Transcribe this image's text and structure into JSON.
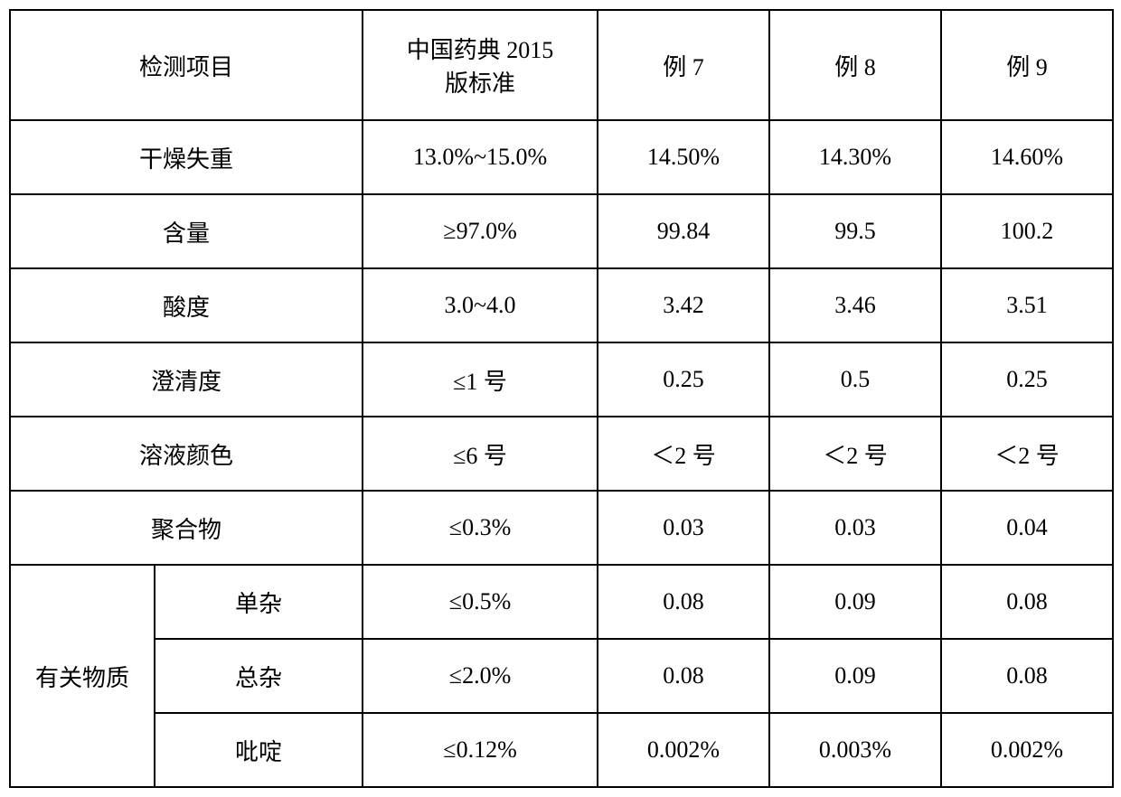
{
  "headers": {
    "item_label": "检测项目",
    "standard": "中国药典 2015",
    "standard_line2": "版标准",
    "ex7": "例 7",
    "ex8": "例 8",
    "ex9": "例 9"
  },
  "rows": [
    {
      "label": "干燥失重",
      "standard": "13.0%~15.0%",
      "ex7": "14.50%",
      "ex8": "14.30%",
      "ex9": "14.60%"
    },
    {
      "label": "含量",
      "standard": "≥97.0%",
      "ex7": "99.84",
      "ex8": "99.5",
      "ex9": "100.2"
    },
    {
      "label": "酸度",
      "standard": "3.0~4.0",
      "ex7": "3.42",
      "ex8": "3.46",
      "ex9": "3.51"
    },
    {
      "label": "澄清度",
      "standard": "≤1 号",
      "ex7": "0.25",
      "ex8": "0.5",
      "ex9": "0.25"
    },
    {
      "label": "溶液颜色",
      "standard": "≤6 号",
      "ex7": "＜2 号",
      "ex8": "＜2 号",
      "ex9": "＜2 号"
    },
    {
      "label": "聚合物",
      "standard": "≤0.3%",
      "ex7": "0.03",
      "ex8": "0.03",
      "ex9": "0.04"
    }
  ],
  "group": {
    "label": "有关物质",
    "subrows": [
      {
        "label": "单杂",
        "standard": "≤0.5%",
        "ex7": "0.08",
        "ex8": "0.09",
        "ex9": "0.08"
      },
      {
        "label": "总杂",
        "standard": "≤2.0%",
        "ex7": "0.08",
        "ex8": "0.09",
        "ex9": "0.08"
      },
      {
        "label": "吡啶",
        "standard": "≤0.12%",
        "ex7": "0.002%",
        "ex8": "0.003%",
        "ex9": "0.002%"
      }
    ]
  }
}
